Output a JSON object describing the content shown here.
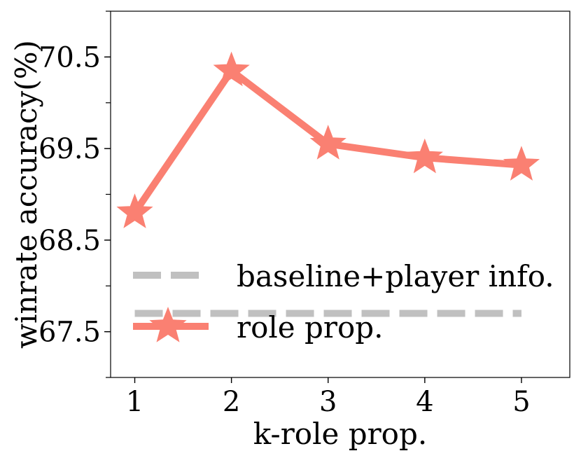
{
  "chart_data": {
    "type": "line",
    "xlabel": "k-role prop.",
    "ylabel": "winrate accuracy(%)",
    "x": [
      1,
      2,
      3,
      4,
      5
    ],
    "xticks": [
      "1",
      "2",
      "3",
      "4",
      "5"
    ],
    "xlim": [
      0.75,
      5.5
    ],
    "ylim": [
      67.0,
      71.0
    ],
    "yticks": [
      67.5,
      68.5,
      69.5,
      70.5
    ],
    "ytick_labels": [
      "67.5",
      "68.5",
      "69.5",
      "70.5"
    ],
    "series": [
      {
        "name": "role prop.",
        "values": [
          68.8,
          70.35,
          69.55,
          69.4,
          69.32
        ],
        "color": "#fa8072",
        "style": "solid",
        "marker": "star"
      },
      {
        "name": "baseline+player info.",
        "values": [
          67.7,
          67.7,
          67.7,
          67.7,
          67.7
        ],
        "color": "#c0c0c0",
        "style": "dashed",
        "marker": "none"
      }
    ],
    "legend": {
      "placement": "lower-left",
      "entries": [
        "baseline+player info.",
        "role prop."
      ]
    },
    "grid": false
  }
}
